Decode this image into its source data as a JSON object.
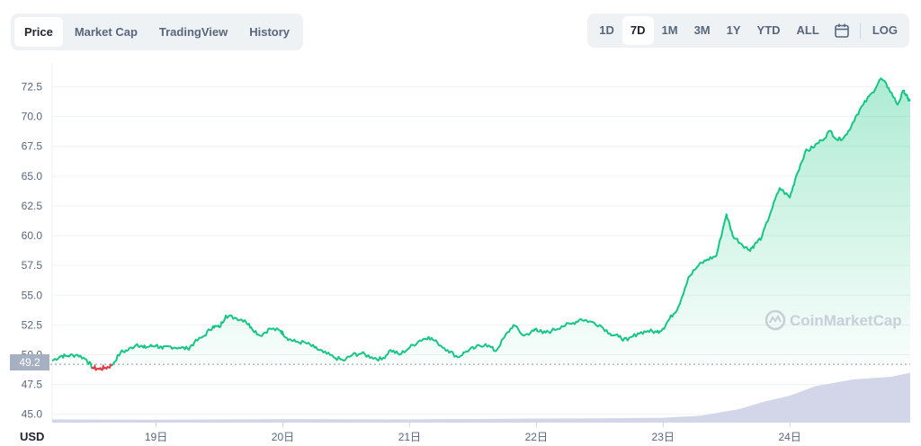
{
  "tabs": [
    {
      "label": "Price",
      "active": true
    },
    {
      "label": "Market Cap",
      "active": false
    },
    {
      "label": "TradingView",
      "active": false
    },
    {
      "label": "History",
      "active": false
    }
  ],
  "ranges": [
    {
      "label": "1D",
      "active": false
    },
    {
      "label": "7D",
      "active": true
    },
    {
      "label": "1M",
      "active": false
    },
    {
      "label": "3M",
      "active": false
    },
    {
      "label": "1Y",
      "active": false
    },
    {
      "label": "YTD",
      "active": false
    },
    {
      "label": "ALL",
      "active": false
    }
  ],
  "log_label": "LOG",
  "calendar_icon": "calendar-icon",
  "watermark": "CoinMarketCap",
  "currency": "USD",
  "current_price_label": "49.2",
  "colors": {
    "up": "#16c784",
    "down": "#ea3943",
    "volume": "#cfd3e6",
    "tag_bg": "#a6b0c3"
  },
  "chart_data": {
    "type": "line",
    "title": "",
    "xlabel": "",
    "ylabel": "",
    "x_ticks": [
      "19日",
      "20日",
      "21日",
      "22日",
      "23日",
      "24日"
    ],
    "y_ticks": [
      "45.0",
      "47.5",
      "50.0",
      "52.5",
      "55.0",
      "57.5",
      "60.0",
      "62.5",
      "65.0",
      "67.5",
      "70.0",
      "72.5"
    ],
    "ylim": [
      44.3,
      74.5
    ],
    "xlim": [
      -0.82,
      5.95
    ],
    "reference_price": 49.2,
    "grid": true,
    "series": [
      {
        "x": [
          -0.82,
          -0.75,
          -0.7,
          -0.62,
          -0.55,
          -0.5,
          -0.45,
          -0.4,
          -0.35,
          -0.28,
          -0.22,
          -0.15,
          -0.1,
          -0.05,
          0,
          0.05,
          0.1,
          0.18,
          0.25,
          0.3,
          0.38,
          0.45,
          0.5,
          0.55,
          0.62,
          0.7,
          0.75,
          0.82,
          0.9,
          0.98,
          1,
          1.05,
          1.1,
          1.18,
          1.25,
          1.32,
          1.4,
          1.48,
          1.55,
          1.62,
          1.7,
          1.78,
          1.85,
          1.92,
          2,
          2.08,
          2.15,
          2.22,
          2.3,
          2.38,
          2.45,
          2.52,
          2.6,
          2.68,
          2.75,
          2.82,
          2.9,
          2.98,
          3,
          3.05,
          3.12,
          3.2,
          3.28,
          3.35,
          3.42,
          3.5,
          3.58,
          3.65,
          3.72,
          3.8,
          3.88,
          3.95,
          4,
          4.05,
          4.12,
          4.2,
          4.28,
          4.35,
          4.42,
          4.5,
          4.55,
          4.62,
          4.68,
          4.72,
          4.78,
          4.85,
          4.92,
          5,
          5.05,
          5.12,
          5.18,
          5.25,
          5.32,
          5.38,
          5.45,
          5.52,
          5.58,
          5.65,
          5.72,
          5.78,
          5.85,
          5.9,
          5.93,
          5.95
        ],
        "y": [
          49.5,
          49.9,
          49.9,
          50.0,
          49.6,
          48.9,
          48.8,
          48.9,
          49.1,
          50.2,
          50.4,
          50.9,
          50.6,
          50.7,
          50.8,
          50.5,
          50.7,
          50.6,
          50.5,
          51.0,
          51.6,
          52.4,
          52.3,
          53.3,
          53.1,
          52.9,
          52.3,
          51.6,
          52.2,
          52.0,
          51.8,
          51.3,
          51.1,
          51.0,
          50.6,
          50.2,
          49.8,
          49.5,
          50.0,
          50.1,
          49.8,
          49.6,
          50.4,
          50.0,
          50.6,
          51.2,
          51.5,
          51.0,
          50.4,
          49.8,
          50.3,
          50.6,
          50.9,
          50.3,
          51.5,
          52.5,
          51.6,
          52.0,
          52.2,
          51.8,
          52.0,
          52.4,
          52.6,
          53.0,
          52.8,
          52.5,
          51.8,
          51.5,
          51.2,
          51.8,
          52.0,
          51.9,
          52.2,
          53.0,
          54.0,
          56.5,
          57.5,
          58.0,
          58.3,
          61.8,
          60.0,
          59.3,
          58.8,
          59.2,
          59.9,
          62.0,
          64.0,
          63.2,
          65.0,
          67.0,
          67.4,
          68.0,
          68.8,
          68.0,
          68.5,
          70.0,
          71.0,
          72.0,
          73.2,
          72.4,
          71.0,
          72.2,
          71.5,
          71.3
        ]
      }
    ],
    "volume": {
      "x": [
        -0.82,
        0,
        1,
        2,
        3,
        3.5,
        4,
        4.3,
        4.6,
        4.8,
        5.0,
        5.2,
        5.5,
        5.8,
        5.95
      ],
      "values": [
        0.12,
        0.11,
        0.13,
        0.12,
        0.15,
        0.16,
        0.18,
        0.26,
        0.5,
        0.78,
        1.0,
        1.35,
        1.6,
        1.7,
        1.85
      ]
    }
  }
}
